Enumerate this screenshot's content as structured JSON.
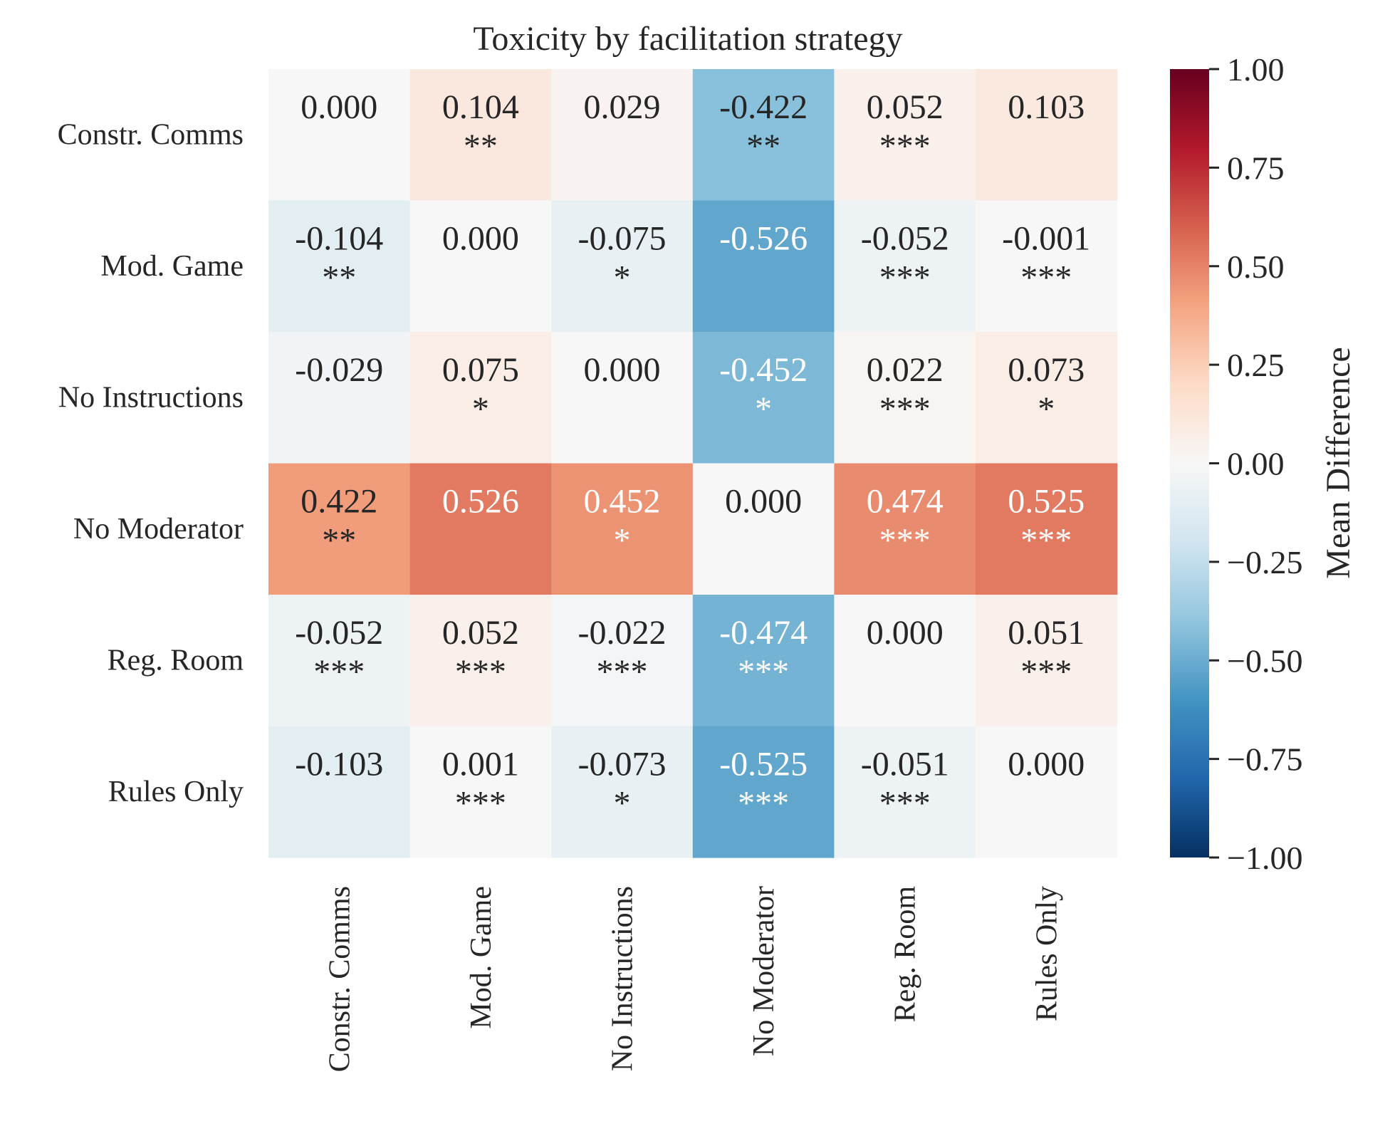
{
  "chart_data": {
    "type": "heatmap",
    "title": "Toxicity by facilitation strategy",
    "rows": [
      "Constr. Comms",
      "Mod. Game",
      "No Instructions",
      "No Moderator",
      "Reg. Room",
      "Rules Only"
    ],
    "cols": [
      "Constr. Comms",
      "Mod. Game",
      "No Instructions",
      "No Moderator",
      "Reg. Room",
      "Rules Only"
    ],
    "values": [
      [
        0.0,
        0.104,
        0.029,
        -0.422,
        0.052,
        0.103
      ],
      [
        -0.104,
        0.0,
        -0.075,
        -0.526,
        -0.052,
        -0.001
      ],
      [
        -0.029,
        0.075,
        0.0,
        -0.452,
        0.022,
        0.073
      ],
      [
        0.422,
        0.526,
        0.452,
        0.0,
        0.474,
        0.525
      ],
      [
        -0.052,
        0.052,
        -0.022,
        -0.474,
        0.0,
        0.051
      ],
      [
        -0.103,
        0.001,
        -0.073,
        -0.525,
        -0.051,
        0.0
      ]
    ],
    "labels": [
      [
        "0.000",
        "0.104",
        "0.029",
        "-0.422",
        "0.052",
        "0.103"
      ],
      [
        "-0.104",
        "0.000",
        "-0.075",
        "-0.526",
        "-0.052",
        "-0.001"
      ],
      [
        "-0.029",
        "0.075",
        "0.000",
        "-0.452",
        "0.022",
        "0.073"
      ],
      [
        "0.422",
        "0.526",
        "0.452",
        "0.000",
        "0.474",
        "0.525"
      ],
      [
        "-0.052",
        "0.052",
        "-0.022",
        "-0.474",
        "0.000",
        "0.051"
      ],
      [
        "-0.103",
        "0.001",
        "-0.073",
        "-0.525",
        "-0.051",
        "0.000"
      ]
    ],
    "significance": [
      [
        "",
        "**",
        "",
        "**",
        "***",
        ""
      ],
      [
        "**",
        "",
        "*",
        "",
        "***",
        "***"
      ],
      [
        "",
        "*",
        "",
        "*",
        "***",
        "*"
      ],
      [
        "**",
        "",
        "*",
        "",
        "***",
        "***"
      ],
      [
        "***",
        "***",
        "***",
        "***",
        "",
        "***"
      ],
      [
        "",
        "***",
        "*",
        "***",
        "***",
        ""
      ]
    ],
    "colorbar": {
      "label": "Mean Difference",
      "range": [
        -1.0,
        1.0
      ],
      "ticks": [
        "1.00",
        "0.75",
        "0.50",
        "0.25",
        "0.00",
        "−0.25",
        "−0.50",
        "−0.75",
        "−1.00"
      ],
      "colormap": "RdBu_r",
      "colors": [
        "#053061",
        "#2166ac",
        "#4393c3",
        "#92c5de",
        "#d1e5f0",
        "#f7f7f7",
        "#fddbc7",
        "#f4a582",
        "#d6604d",
        "#b2182b",
        "#67001f"
      ]
    },
    "grid": false
  }
}
